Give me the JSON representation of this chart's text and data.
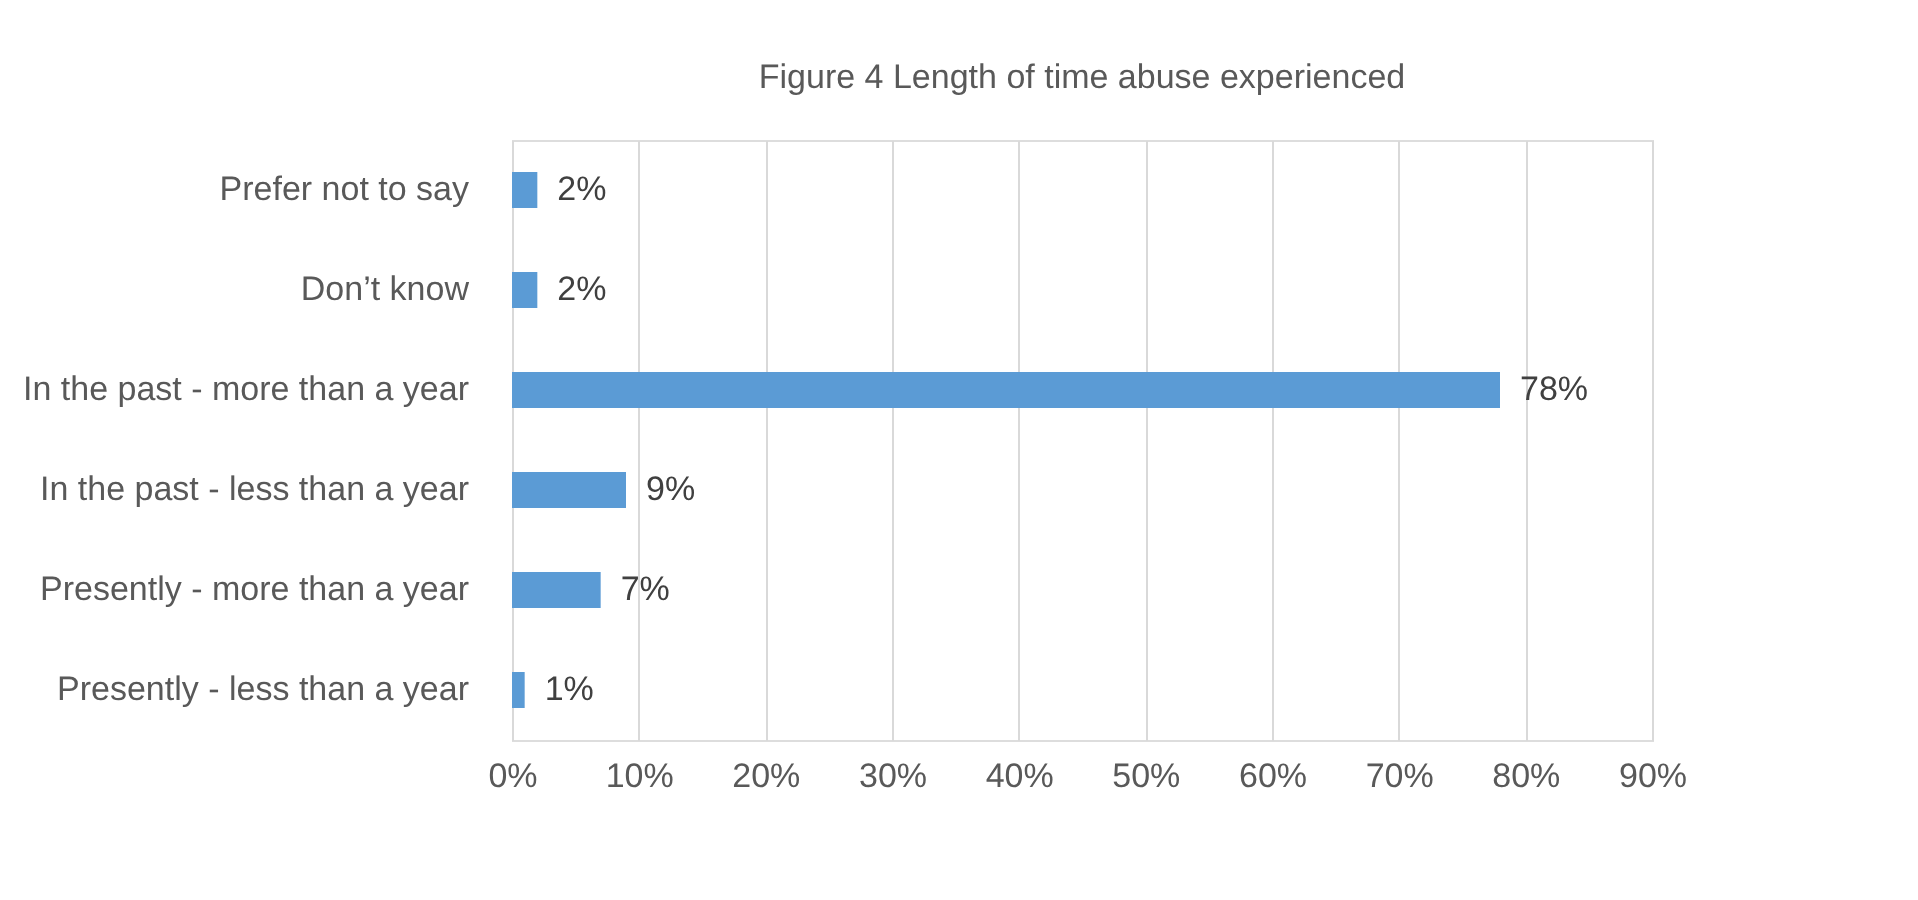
{
  "chart_data": {
    "type": "bar",
    "orientation": "horizontal",
    "title": "Figure 4 Length of time abuse experienced",
    "categories": [
      "Prefer not to say",
      "Don’t know",
      "In the past - more than a year",
      "In the past - less than a year",
      "Presently - more than a year",
      "Presently - less than a year"
    ],
    "values": [
      2,
      2,
      78,
      9,
      7,
      1
    ],
    "value_labels": [
      "2%",
      "2%",
      "78%",
      "9%",
      "7%",
      "1%"
    ],
    "color": "#5b9bd5",
    "xlim": [
      0,
      90
    ],
    "xticks": [
      {
        "value": 0,
        "label": "0%"
      },
      {
        "value": 10,
        "label": "10%"
      },
      {
        "value": 20,
        "label": "20%"
      },
      {
        "value": 30,
        "label": "30%"
      },
      {
        "value": 40,
        "label": "40%"
      },
      {
        "value": 50,
        "label": "50%"
      },
      {
        "value": 60,
        "label": "60%"
      },
      {
        "value": 70,
        "label": "70%"
      },
      {
        "value": 80,
        "label": "80%"
      },
      {
        "value": 90,
        "label": "90%"
      }
    ],
    "grid": "x"
  }
}
